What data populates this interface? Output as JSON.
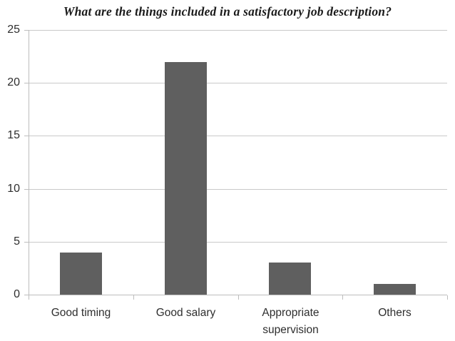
{
  "chart_data": {
    "type": "bar",
    "title": "What are the things included in a satisfactory job description?",
    "categories": [
      "Good timing",
      "Good salary",
      "Appropriate supervision",
      "Others"
    ],
    "values": [
      4,
      22,
      3,
      1
    ],
    "xlabel": "",
    "ylabel": "",
    "ylim": [
      0,
      25
    ],
    "yticks": [
      0,
      5,
      10,
      15,
      20,
      25
    ],
    "grid": true,
    "legend": false,
    "colors": {
      "bar": "#5f5f5f",
      "gridline": "#c9c9c9",
      "axis": "#bdbdbd",
      "text": "#2e2e2e",
      "title": "#1a1a1a",
      "background": "#ffffff"
    }
  }
}
